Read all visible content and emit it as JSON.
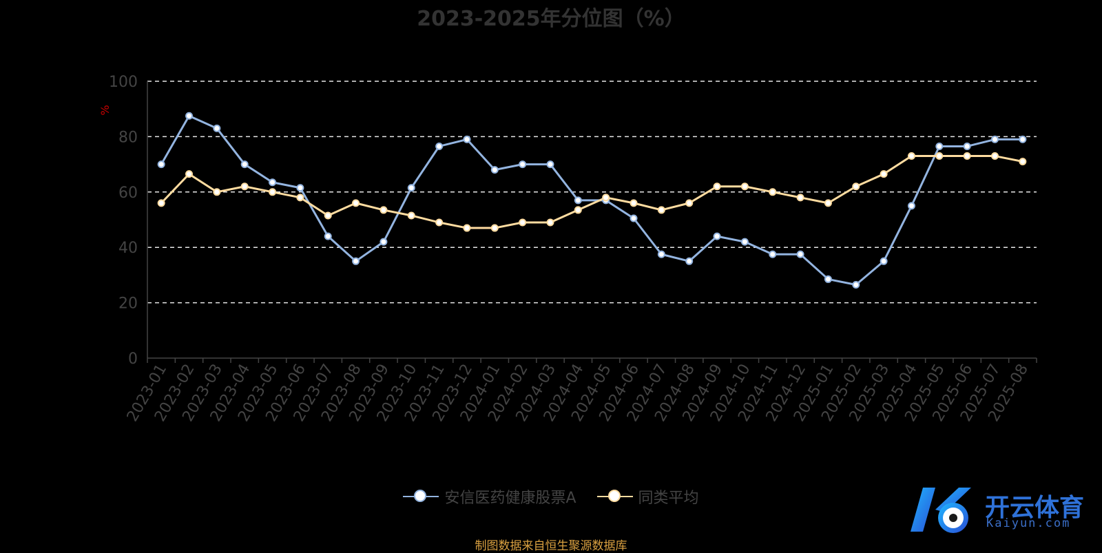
{
  "chart_data": {
    "type": "line",
    "title": "2023-2025年分位图（%）",
    "ylabel": "%",
    "ylim": [
      0,
      100
    ],
    "yticks": [
      0,
      20,
      40,
      60,
      80,
      100
    ],
    "grid": true,
    "legend_position": "bottom",
    "categories": [
      "2023-01",
      "2023-02",
      "2023-03",
      "2023-04",
      "2023-05",
      "2023-06",
      "2023-07",
      "2023-08",
      "2023-09",
      "2023-10",
      "2023-11",
      "2023-12",
      "2024-01",
      "2024-02",
      "2024-03",
      "2024-04",
      "2024-05",
      "2024-06",
      "2024-07",
      "2024-08",
      "2024-09",
      "2024-10",
      "2024-11",
      "2024-12",
      "2025-01",
      "2025-02",
      "2025-03",
      "2025-04",
      "2025-05",
      "2025-06",
      "2025-07",
      "2025-08"
    ],
    "series": [
      {
        "name": "安信医药健康股票A",
        "color": "#93b4e0",
        "values": [
          70,
          87.5,
          83,
          70,
          63.5,
          61.5,
          44,
          35,
          42,
          61.5,
          76.5,
          79,
          68,
          70,
          70,
          57,
          57,
          50.5,
          37.5,
          35,
          44,
          42,
          37.5,
          37.5,
          28.5,
          26.5,
          35,
          55,
          76.5,
          76.5,
          79,
          79
        ]
      },
      {
        "name": "同类平均",
        "color": "#ffdca0",
        "values": [
          56,
          66.5,
          60,
          62,
          60,
          58,
          51.5,
          56,
          53.5,
          51.5,
          49,
          47,
          47,
          49,
          49,
          53.5,
          58,
          56,
          53.5,
          56,
          62,
          62,
          60,
          58,
          56,
          62,
          66.5,
          73,
          73,
          73,
          73,
          71
        ]
      }
    ]
  },
  "source_note": "制图数据来自恒生聚源数据库",
  "logo": {
    "cn": "开云体育",
    "en": "Kaiyun.com"
  }
}
